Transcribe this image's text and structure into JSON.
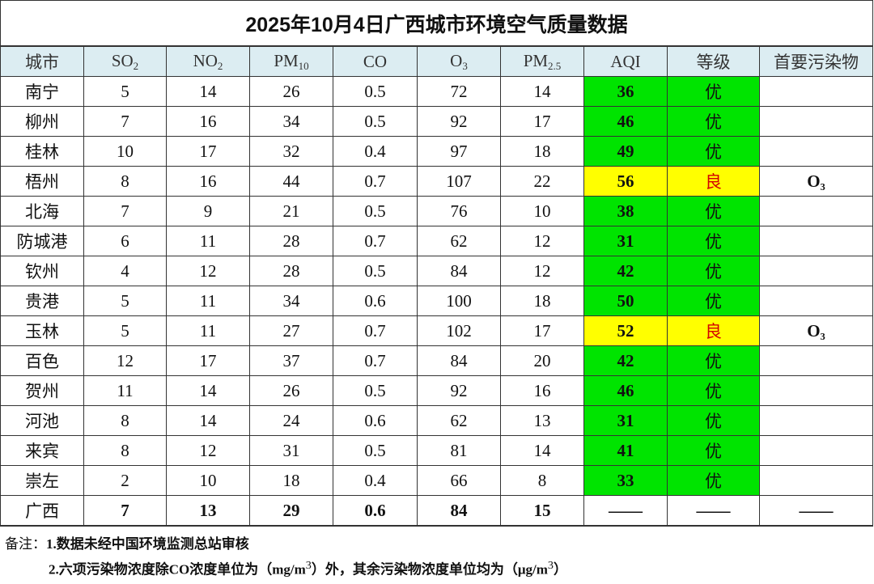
{
  "title": "2025年10月4日广西城市环境空气质量数据",
  "headers": [
    {
      "main": "城市",
      "sub": ""
    },
    {
      "main": "SO",
      "sub": "2"
    },
    {
      "main": "NO",
      "sub": "2"
    },
    {
      "main": "PM",
      "sub": "10"
    },
    {
      "main": "CO",
      "sub": ""
    },
    {
      "main": "O",
      "sub": "3"
    },
    {
      "main": "PM",
      "sub": "2.5"
    },
    {
      "main": "AQI",
      "sub": ""
    },
    {
      "main": "等级",
      "sub": ""
    },
    {
      "main": "首要污染物",
      "sub": ""
    }
  ],
  "rows": [
    {
      "city": "南宁",
      "so2": "5",
      "no2": "14",
      "pm10": "26",
      "co": "0.5",
      "o3": "72",
      "pm25": "14",
      "aqi": "36",
      "grade": "优",
      "primary": ""
    },
    {
      "city": "柳州",
      "so2": "7",
      "no2": "16",
      "pm10": "34",
      "co": "0.5",
      "o3": "92",
      "pm25": "17",
      "aqi": "46",
      "grade": "优",
      "primary": ""
    },
    {
      "city": "桂林",
      "so2": "10",
      "no2": "17",
      "pm10": "32",
      "co": "0.4",
      "o3": "97",
      "pm25": "18",
      "aqi": "49",
      "grade": "优",
      "primary": ""
    },
    {
      "city": "梧州",
      "so2": "8",
      "no2": "16",
      "pm10": "44",
      "co": "0.7",
      "o3": "107",
      "pm25": "22",
      "aqi": "56",
      "grade": "良",
      "primary": "O₃"
    },
    {
      "city": "北海",
      "so2": "7",
      "no2": "9",
      "pm10": "21",
      "co": "0.5",
      "o3": "76",
      "pm25": "10",
      "aqi": "38",
      "grade": "优",
      "primary": ""
    },
    {
      "city": "防城港",
      "so2": "6",
      "no2": "11",
      "pm10": "28",
      "co": "0.7",
      "o3": "62",
      "pm25": "12",
      "aqi": "31",
      "grade": "优",
      "primary": ""
    },
    {
      "city": "钦州",
      "so2": "4",
      "no2": "12",
      "pm10": "28",
      "co": "0.5",
      "o3": "84",
      "pm25": "12",
      "aqi": "42",
      "grade": "优",
      "primary": ""
    },
    {
      "city": "贵港",
      "so2": "5",
      "no2": "11",
      "pm10": "34",
      "co": "0.6",
      "o3": "100",
      "pm25": "18",
      "aqi": "50",
      "grade": "优",
      "primary": ""
    },
    {
      "city": "玉林",
      "so2": "5",
      "no2": "11",
      "pm10": "27",
      "co": "0.7",
      "o3": "102",
      "pm25": "17",
      "aqi": "52",
      "grade": "良",
      "primary": "O₃"
    },
    {
      "city": "百色",
      "so2": "12",
      "no2": "17",
      "pm10": "37",
      "co": "0.7",
      "o3": "84",
      "pm25": "20",
      "aqi": "42",
      "grade": "优",
      "primary": ""
    },
    {
      "city": "贺州",
      "so2": "11",
      "no2": "14",
      "pm10": "26",
      "co": "0.5",
      "o3": "92",
      "pm25": "16",
      "aqi": "46",
      "grade": "优",
      "primary": ""
    },
    {
      "city": "河池",
      "so2": "8",
      "no2": "14",
      "pm10": "24",
      "co": "0.6",
      "o3": "62",
      "pm25": "13",
      "aqi": "31",
      "grade": "优",
      "primary": ""
    },
    {
      "city": "来宾",
      "so2": "8",
      "no2": "12",
      "pm10": "31",
      "co": "0.5",
      "o3": "81",
      "pm25": "14",
      "aqi": "41",
      "grade": "优",
      "primary": ""
    },
    {
      "city": "崇左",
      "so2": "2",
      "no2": "10",
      "pm10": "18",
      "co": "0.4",
      "o3": "66",
      "pm25": "8",
      "aqi": "33",
      "grade": "优",
      "primary": ""
    }
  ],
  "total": {
    "city": "广西",
    "so2": "7",
    "no2": "13",
    "pm10": "29",
    "co": "0.6",
    "o3": "84",
    "pm25": "15",
    "aqi": "——",
    "grade": "——",
    "primary": "——"
  },
  "colors": {
    "优": "#00e400",
    "良": "#ffff00",
    "header_bg": "#dcedf2"
  },
  "notes": {
    "label": "备注：",
    "note1": "1.数据未经中国环境监测总站审核",
    "note2_prefix": "2.六项污染物浓度除CO浓度单位为（mg/m",
    "note2_mid": "）外，其余污染物浓度单位均为（μg/m",
    "note2_end": "）",
    "sup": "3"
  }
}
